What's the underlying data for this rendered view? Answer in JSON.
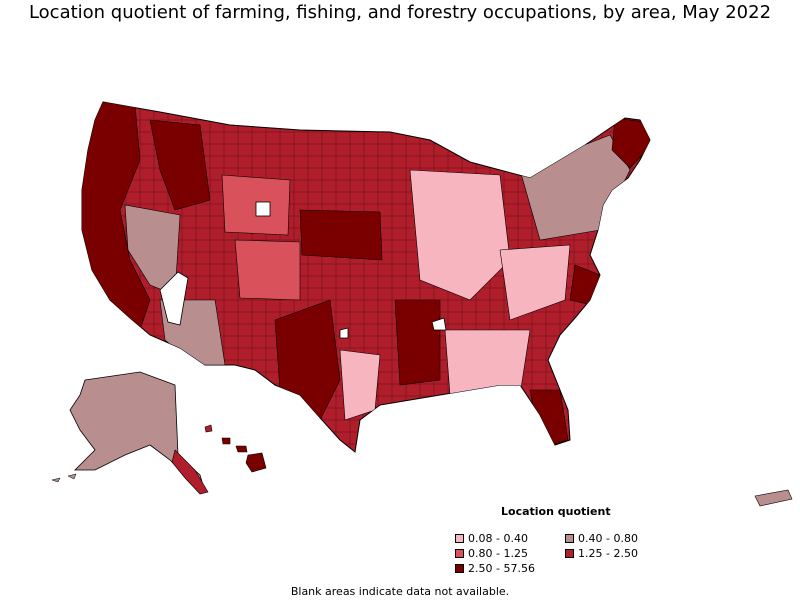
{
  "title": "Location quotient of farming, fishing, and forestry occupations, by area, May 2022",
  "legend": {
    "title": "Location quotient",
    "items": [
      {
        "label": "0.08 - 0.40",
        "color": "#f7b5c0"
      },
      {
        "label": "0.40 - 0.80",
        "color": "#b88e8e"
      },
      {
        "label": "0.80 - 1.25",
        "color": "#d9515b"
      },
      {
        "label": "1.25 - 2.50",
        "color": "#b01e2b"
      },
      {
        "label": "2.50 - 57.56",
        "color": "#7a0000"
      }
    ]
  },
  "note": "Blank areas indicate data not available.",
  "colors": {
    "border": "#000000",
    "blank": "#ffffff"
  }
}
